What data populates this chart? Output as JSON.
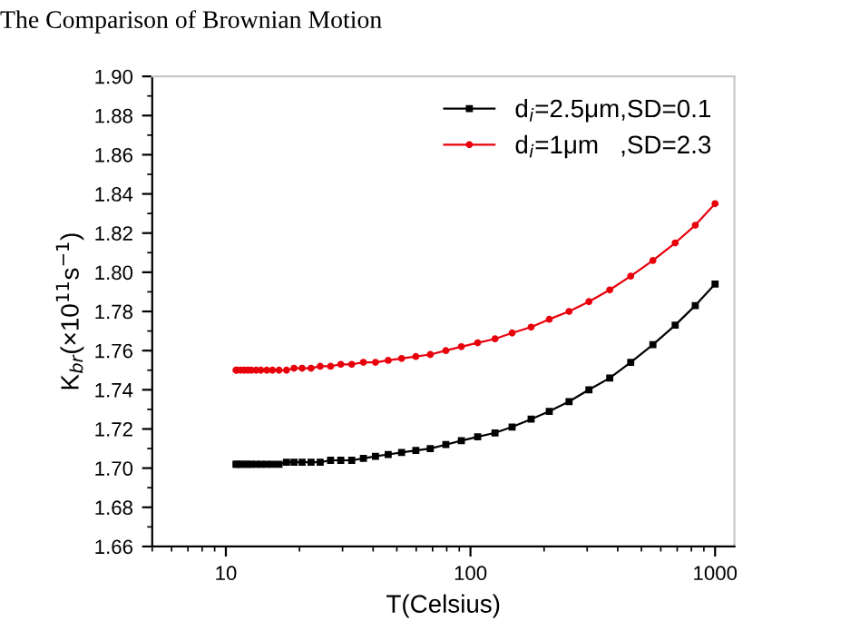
{
  "chart_data": {
    "type": "line",
    "title": "The Comparison of Brownian Motion",
    "xlabel": "T(Celsius)",
    "ylabel": "K$_{br}$(×10$^{11}$s$^{−1}$)",
    "log": "x",
    "xlim": [
      5,
      1200
    ],
    "xticks": [
      10,
      100,
      1000
    ],
    "ylim": [
      1.66,
      1.9
    ],
    "yticks": [
      {
        "value": 1.66,
        "label": "1.66"
      },
      {
        "value": 1.68,
        "label": "1.68"
      },
      {
        "value": 1.7,
        "label": "1.70"
      },
      {
        "value": 1.72,
        "label": "1.72"
      },
      {
        "value": 1.74,
        "label": "1.74"
      },
      {
        "value": 1.76,
        "label": "1.76"
      },
      {
        "value": 1.78,
        "label": "1.78"
      },
      {
        "value": 1.8,
        "label": "1.80"
      },
      {
        "value": 1.82,
        "label": "1.82"
      },
      {
        "value": 1.84,
        "label": "1.84"
      },
      {
        "value": 1.86,
        "label": "1.86"
      },
      {
        "value": 1.88,
        "label": "1.88"
      },
      {
        "value": 1.9,
        "label": "1.90"
      }
    ],
    "x": [
      11.0,
      11.1,
      11.5,
      11.9,
      12.3,
      12.7,
      13.3,
      13.9,
      14.7,
      15.5,
      16.5,
      17.7,
      19.0,
      20.5,
      22.3,
      24.3,
      26.8,
      29.5,
      32.7,
      36.5,
      40.9,
      46.1,
      52.3,
      59.8,
      68.5,
      79.3,
      91.8,
      107,
      126,
      148,
      177,
      210,
      253,
      305,
      371,
      452,
      557,
      687,
      830,
      1000
    ],
    "series": [
      {
        "name": "d$_{i}$=2.5μm,SD=0.1",
        "color": "#000000",
        "marker": "square",
        "values": [
          1.702,
          1.702,
          1.702,
          1.702,
          1.702,
          1.702,
          1.702,
          1.702,
          1.702,
          1.702,
          1.702,
          1.703,
          1.703,
          1.703,
          1.703,
          1.703,
          1.704,
          1.704,
          1.704,
          1.705,
          1.706,
          1.707,
          1.708,
          1.709,
          1.71,
          1.712,
          1.714,
          1.716,
          1.718,
          1.721,
          1.725,
          1.729,
          1.734,
          1.74,
          1.746,
          1.754,
          1.763,
          1.773,
          1.783,
          1.794
        ]
      },
      {
        "name": "d$_{i}$=1μm   ,SD=2.3",
        "color": "#e8000b",
        "marker": "circle",
        "values": [
          1.75,
          1.75,
          1.75,
          1.75,
          1.75,
          1.75,
          1.75,
          1.75,
          1.75,
          1.75,
          1.75,
          1.75,
          1.751,
          1.751,
          1.751,
          1.752,
          1.752,
          1.753,
          1.753,
          1.754,
          1.754,
          1.755,
          1.756,
          1.757,
          1.758,
          1.76,
          1.762,
          1.764,
          1.766,
          1.769,
          1.772,
          1.776,
          1.78,
          1.785,
          1.791,
          1.798,
          1.806,
          1.815,
          1.824,
          1.835
        ]
      }
    ],
    "legend": "top right",
    "grid": false
  }
}
